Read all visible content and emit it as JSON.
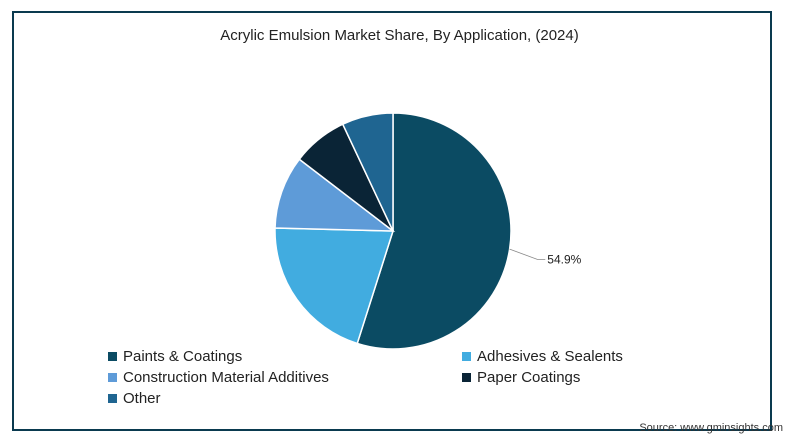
{
  "chart_data": {
    "type": "pie",
    "title": "Acrylic Emulsion Market Share, By Application, (2024)",
    "series": [
      {
        "name": "Paints & Coatings",
        "value": 54.9,
        "color": "#0b4b63"
      },
      {
        "name": "Adhesives & Sealents",
        "value": 20.5,
        "color": "#41ace0"
      },
      {
        "name": "Construction Material Additives",
        "value": 10.0,
        "color": "#5e9bd8"
      },
      {
        "name": "Paper Coatings",
        "value": 7.6,
        "color": "#0a2436"
      },
      {
        "name": "Other",
        "value": 7.0,
        "color": "#1f6591"
      }
    ],
    "data_labels": [
      {
        "series": "Paints & Coatings",
        "text": "54.9%"
      }
    ],
    "legend_position": "bottom-left"
  },
  "source": "Source: www.gminsights.com"
}
